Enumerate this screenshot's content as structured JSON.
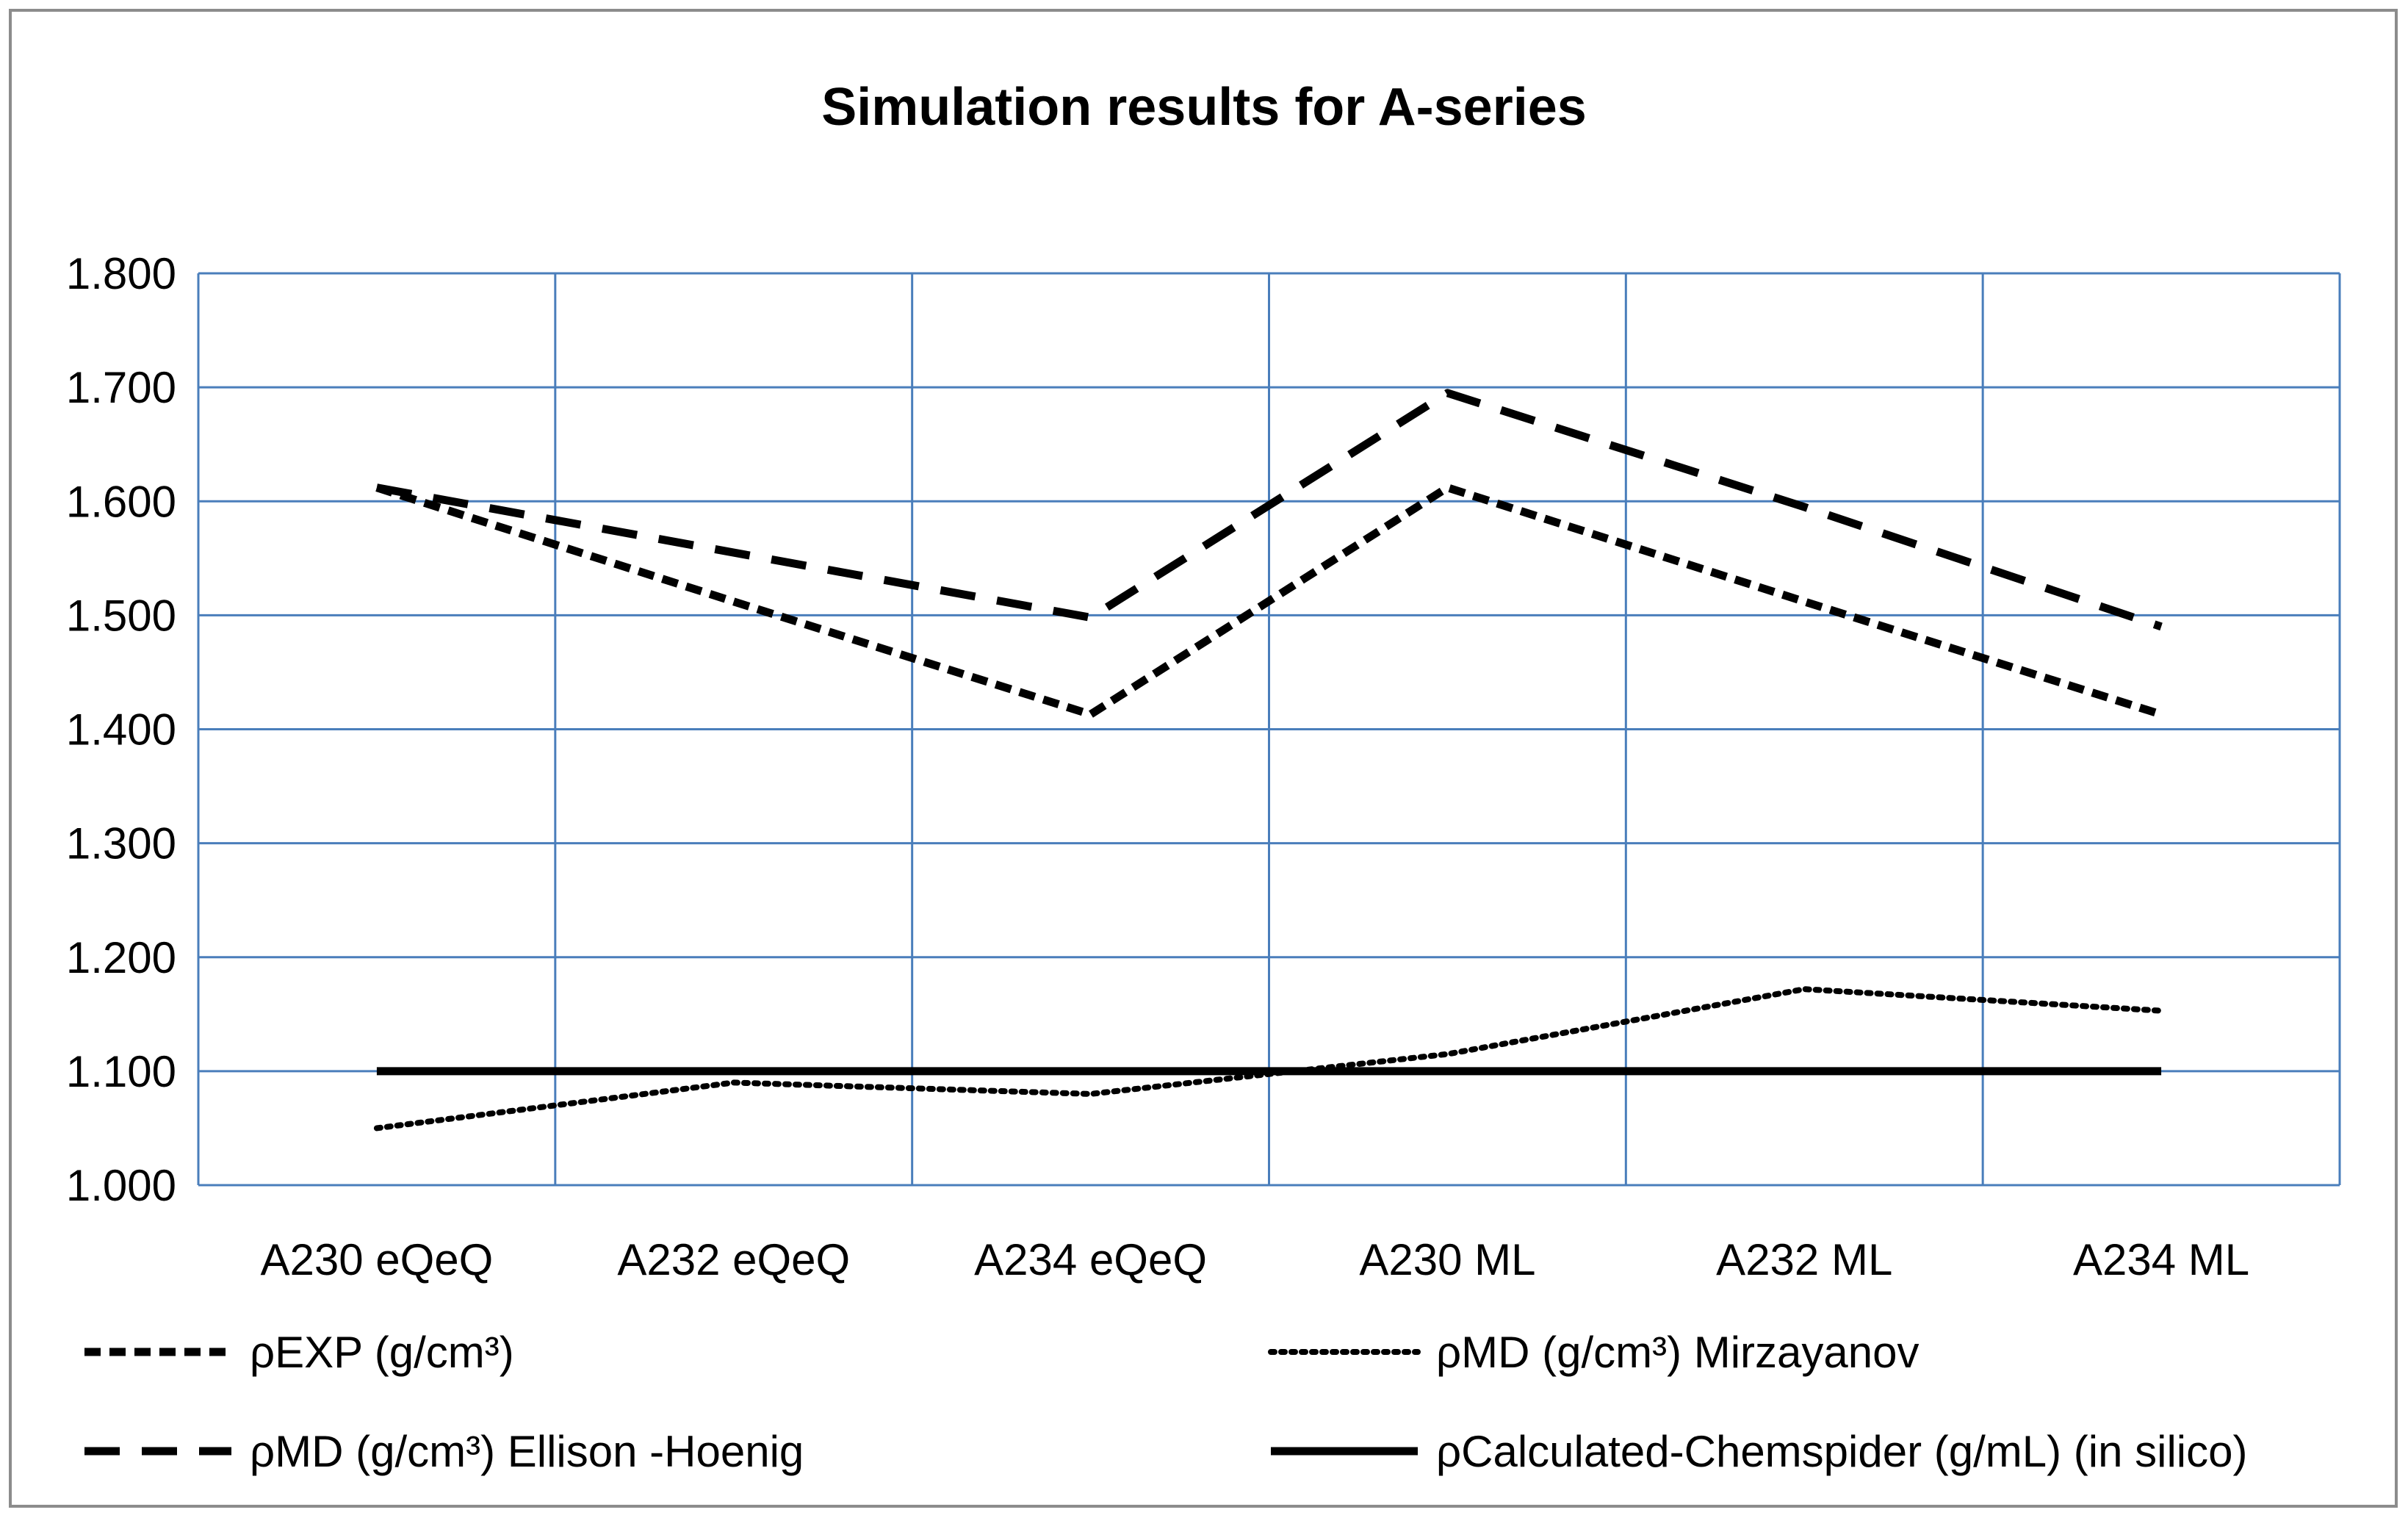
{
  "chart_data": {
    "type": "line",
    "title": "Simulation results for A-series",
    "xlabel": "",
    "ylabel": "",
    "categories": [
      "A230 eQeQ",
      "A232 eQeQ",
      "A234 eQeQ",
      "A230 ML",
      "A232 ML",
      "A234 ML"
    ],
    "ylim": [
      1.0,
      1.8
    ],
    "yticks": [
      "1.000",
      "1.100",
      "1.200",
      "1.300",
      "1.400",
      "1.500",
      "1.600",
      "1.700",
      "1.800"
    ],
    "grid": true,
    "legend_position": "bottom",
    "series": [
      {
        "name": "ρEXP (g/cm³)",
        "style": "dashed",
        "values": [
          1.612,
          1.512,
          1.413,
          1.612,
          1.512,
          1.413
        ]
      },
      {
        "name": "ρMD (g/cm³) Mirzayanov",
        "style": "dotted",
        "values": [
          1.05,
          1.09,
          1.08,
          1.115,
          1.172,
          1.153
        ]
      },
      {
        "name": "ρMD (g/cm³) Ellison -Hoenig",
        "style": "long-dashed",
        "values": [
          1.612,
          1.555,
          1.498,
          1.695,
          1.595,
          1.49
        ]
      },
      {
        "name": "ρCalculated-Chemspider (g/mL) (in silico)",
        "style": "solid",
        "values": [
          1.1,
          1.1,
          1.1,
          1.1,
          1.1,
          1.1
        ]
      }
    ],
    "colors": {
      "grid": "#4a7ebb",
      "series": "#000000"
    }
  }
}
